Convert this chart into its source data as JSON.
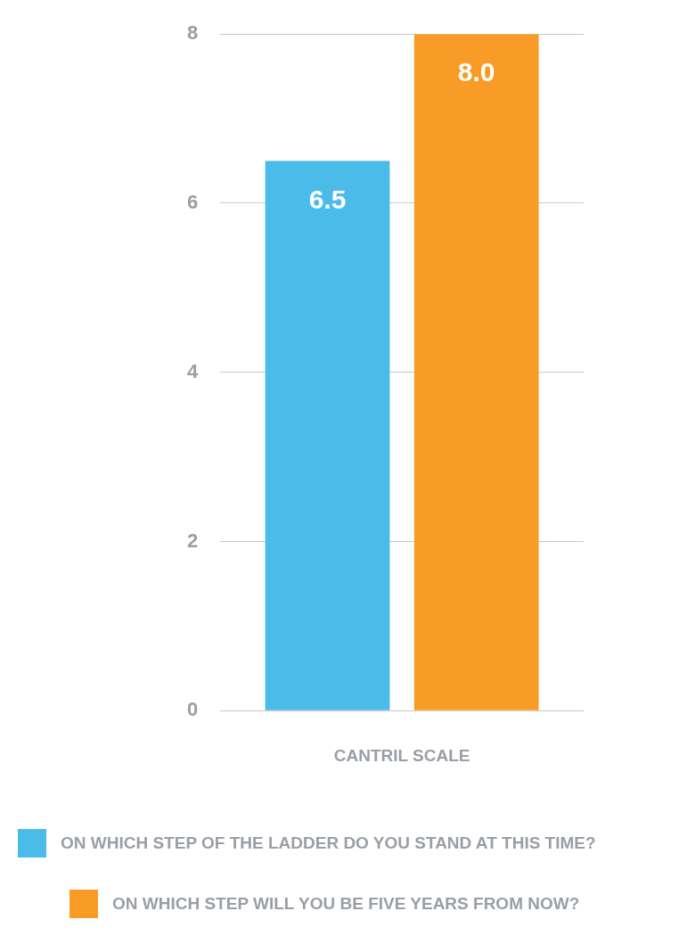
{
  "chart_data": {
    "type": "bar",
    "categories": [
      "CANTRIL SCALE"
    ],
    "series": [
      {
        "name": "ON WHICH STEP OF THE LADDER DO YOU STAND AT THIS TIME?",
        "color": "#4bbbea",
        "values": [
          6.5
        ],
        "value_labels": [
          "6.5"
        ]
      },
      {
        "name": "ON WHICH STEP WILL YOU BE FIVE YEARS FROM NOW?",
        "color": "#f89c27",
        "values": [
          8
        ],
        "value_labels": [
          "8.0"
        ]
      }
    ],
    "ylim": [
      0,
      8
    ],
    "yticks": [
      0,
      2,
      4,
      6,
      8
    ],
    "grid": "y",
    "legend": "bottom"
  }
}
